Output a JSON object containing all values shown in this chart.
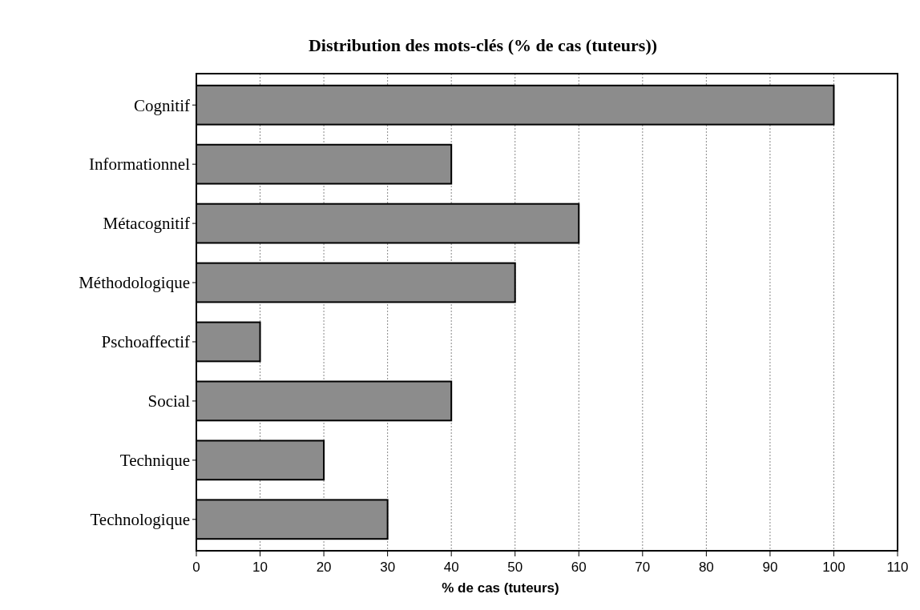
{
  "chart_data": {
    "type": "bar",
    "orientation": "horizontal",
    "title": "Distribution des mots-clés (% de cas (tuteurs))",
    "xlabel": "% de cas (tuteurs)",
    "categories": [
      "Cognitif",
      "Informationnel",
      "Métacognitif",
      "Méthodologique",
      "Pschoaffectif",
      "Social",
      "Technique",
      "Technologique"
    ],
    "values": [
      100,
      40,
      60,
      50,
      10,
      40,
      20,
      30
    ],
    "color": "#8c8c8c",
    "xlim": [
      0,
      110
    ],
    "xticks": [
      0,
      10,
      20,
      30,
      40,
      50,
      60,
      70,
      80,
      90,
      100,
      110
    ],
    "grid": "x"
  }
}
